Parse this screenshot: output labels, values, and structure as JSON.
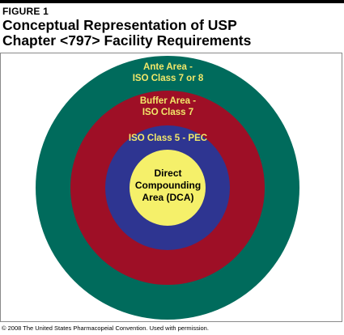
{
  "figure": {
    "label": "FIGURE 1",
    "title_line1": "Conceptual Representation of USP",
    "title_line2": "Chapter <797> Facility Requirements"
  },
  "zones": {
    "ante": {
      "line1": "Ante Area -",
      "line2": "ISO Class 7 or 8",
      "color": "#006b5c",
      "text_color": "#f2e86a"
    },
    "buffer": {
      "line1": "Buffer Area -",
      "line2": "ISO Class 7",
      "color": "#9e0f26",
      "text_color": "#f2e86a"
    },
    "iso5": {
      "line1": "ISO Class 5 - PEC",
      "color": "#2e3591",
      "text_color": "#f2e86a"
    },
    "dca": {
      "line1": "Direct",
      "line2": "Compounding",
      "line3": "Area (DCA)",
      "color": "#f5f06a",
      "text_color": "#000000"
    }
  },
  "credit": "© 2008 The United States Pharmacopeial Convention. Used with permission."
}
